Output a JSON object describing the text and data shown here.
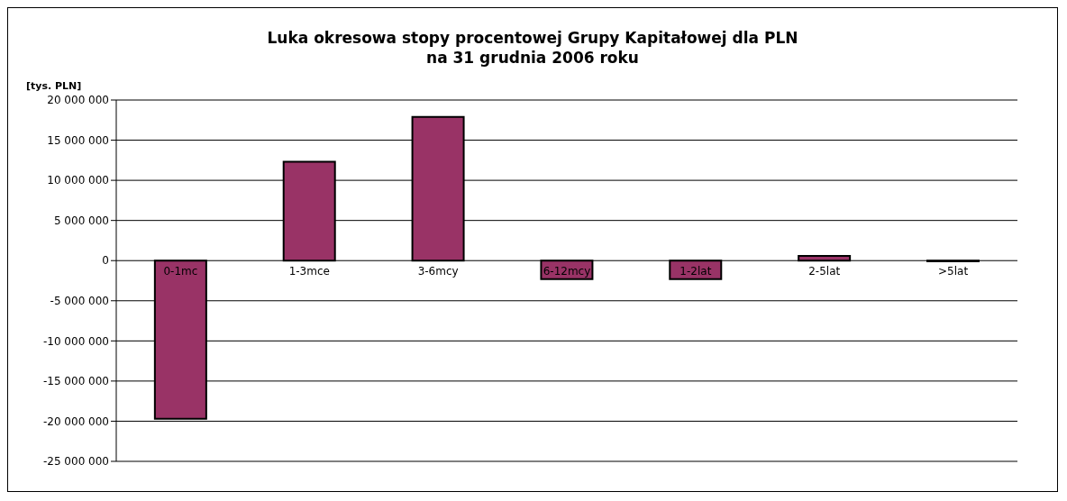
{
  "chart_data": {
    "type": "bar",
    "title": "Luka okresowa stopy procentowej Grupy Kapitałowej dla PLN\nna 31 grudnia 2006 roku",
    "ylabel": "[tys. PLN]",
    "categories": [
      "0-1mc",
      "1-3mce",
      "3-6mcy",
      "6-12mcy",
      "1-2lat",
      "2-5lat",
      ">5lat"
    ],
    "values": [
      -19700000,
      12300000,
      17900000,
      -2300000,
      -2300000,
      600000,
      -100000
    ],
    "color": "#993366",
    "ylim": [
      -25000000,
      20000000
    ],
    "yticks": [
      -25000000,
      -20000000,
      -15000000,
      -10000000,
      -5000000,
      0,
      5000000,
      10000000,
      15000000,
      20000000
    ],
    "grid": "y"
  }
}
